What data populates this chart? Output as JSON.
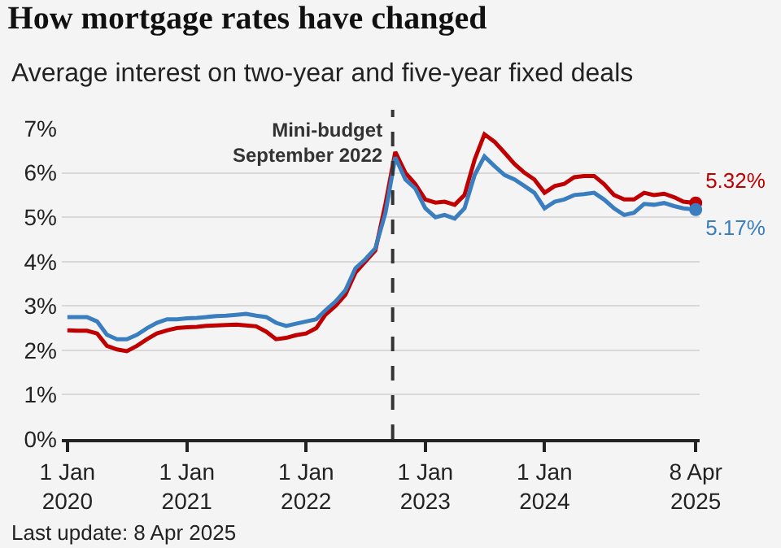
{
  "chart_data": {
    "type": "line",
    "title": "How mortgage rates have changed",
    "subtitle": "Average interest on two-year and five-year fixed deals",
    "x": [
      "2020-01-01",
      "2020-02-01",
      "2020-03-01",
      "2020-04-01",
      "2020-05-01",
      "2020-06-01",
      "2020-07-01",
      "2020-08-01",
      "2020-09-01",
      "2020-10-01",
      "2020-11-01",
      "2020-12-01",
      "2021-01-01",
      "2021-02-01",
      "2021-03-01",
      "2021-04-01",
      "2021-05-01",
      "2021-06-01",
      "2021-07-01",
      "2021-08-01",
      "2021-09-01",
      "2021-10-01",
      "2021-11-01",
      "2021-12-01",
      "2022-01-01",
      "2022-02-01",
      "2022-03-01",
      "2022-04-01",
      "2022-05-01",
      "2022-06-01",
      "2022-07-01",
      "2022-08-01",
      "2022-09-01",
      "2022-10-01",
      "2022-11-01",
      "2022-12-01",
      "2023-01-01",
      "2023-02-01",
      "2023-03-01",
      "2023-04-01",
      "2023-05-01",
      "2023-06-01",
      "2023-07-01",
      "2023-08-01",
      "2023-09-01",
      "2023-10-01",
      "2023-11-01",
      "2023-12-01",
      "2024-01-01",
      "2024-02-01",
      "2024-03-01",
      "2024-04-01",
      "2024-05-01",
      "2024-06-01",
      "2024-07-01",
      "2024-08-01",
      "2024-09-01",
      "2024-10-01",
      "2024-11-01",
      "2024-12-01",
      "2025-01-01",
      "2025-02-01",
      "2025-03-01",
      "2025-04-08"
    ],
    "series": [
      {
        "color": "#c00000",
        "values": [
          2.45,
          2.44,
          2.44,
          2.38,
          2.1,
          2.02,
          1.98,
          2.1,
          2.25,
          2.38,
          2.45,
          2.5,
          2.52,
          2.53,
          2.55,
          2.56,
          2.57,
          2.58,
          2.56,
          2.54,
          2.42,
          2.25,
          2.28,
          2.34,
          2.38,
          2.5,
          2.8,
          3.0,
          3.25,
          3.75,
          4.0,
          4.25,
          5.3,
          6.47,
          6.0,
          5.75,
          5.4,
          5.33,
          5.35,
          5.28,
          5.5,
          6.3,
          6.87,
          6.7,
          6.45,
          6.2,
          6.0,
          5.85,
          5.55,
          5.7,
          5.75,
          5.9,
          5.93,
          5.93,
          5.75,
          5.5,
          5.4,
          5.4,
          5.55,
          5.5,
          5.53,
          5.45,
          5.35,
          5.32
        ],
        "value_labels": [
          null,
          null,
          null,
          null,
          null,
          null,
          null,
          null,
          null,
          null,
          null,
          null,
          null,
          null,
          null,
          null,
          null,
          null,
          null,
          null,
          null,
          null,
          null,
          null,
          null,
          null,
          null,
          null,
          null,
          null,
          null,
          null,
          null,
          null,
          null,
          null,
          null,
          null,
          null,
          null,
          null,
          null,
          null,
          null,
          null,
          null,
          null,
          null,
          null,
          null,
          null,
          null,
          null,
          null,
          null,
          null,
          null,
          null,
          null,
          null,
          null,
          null,
          null,
          "5.32%"
        ]
      },
      {
        "color": "#3a7ebf",
        "values": [
          2.75,
          2.75,
          2.75,
          2.65,
          2.35,
          2.25,
          2.25,
          2.35,
          2.5,
          2.62,
          2.7,
          2.7,
          2.72,
          2.73,
          2.75,
          2.77,
          2.78,
          2.8,
          2.82,
          2.78,
          2.75,
          2.62,
          2.55,
          2.6,
          2.65,
          2.7,
          2.9,
          3.1,
          3.35,
          3.85,
          4.05,
          4.3,
          5.1,
          6.35,
          5.85,
          5.65,
          5.2,
          5.0,
          5.05,
          4.97,
          5.2,
          5.95,
          6.37,
          6.15,
          5.95,
          5.85,
          5.7,
          5.55,
          5.2,
          5.35,
          5.4,
          5.5,
          5.52,
          5.55,
          5.4,
          5.2,
          5.05,
          5.1,
          5.3,
          5.28,
          5.32,
          5.25,
          5.2,
          5.17
        ],
        "value_labels": [
          null,
          null,
          null,
          null,
          null,
          null,
          null,
          null,
          null,
          null,
          null,
          null,
          null,
          null,
          null,
          null,
          null,
          null,
          null,
          null,
          null,
          null,
          null,
          null,
          null,
          null,
          null,
          null,
          null,
          null,
          null,
          null,
          null,
          null,
          null,
          null,
          null,
          null,
          null,
          null,
          null,
          null,
          null,
          null,
          null,
          null,
          null,
          null,
          null,
          null,
          null,
          null,
          null,
          null,
          null,
          null,
          null,
          null,
          null,
          null,
          null,
          null,
          null,
          "5.17%"
        ]
      }
    ],
    "xlim": [
      "2019-12-15",
      "2025-04-20"
    ],
    "xticks": [
      {
        "value": "2020-01-01",
        "label": "1 Jan\n2020"
      },
      {
        "value": "2021-01-01",
        "label": "1 Jan\n2021"
      },
      {
        "value": "2022-01-01",
        "label": "1 Jan\n2022"
      },
      {
        "value": "2023-01-01",
        "label": "1 Jan\n2023"
      },
      {
        "value": "2024-01-01",
        "label": "1 Jan\n2024"
      },
      {
        "value": "2025-04-08",
        "label": "8 Apr\n2025"
      }
    ],
    "ylim": [
      0,
      7
    ],
    "yticks": [
      {
        "value": 0,
        "label": "0%"
      },
      {
        "value": 1,
        "label": "1%"
      },
      {
        "value": 2,
        "label": "2%"
      },
      {
        "value": 3,
        "label": "3%"
      },
      {
        "value": 4,
        "label": "4%"
      },
      {
        "value": 5,
        "label": "5%"
      },
      {
        "value": 6,
        "label": "6%"
      },
      {
        "value": 7,
        "label": "7%"
      }
    ],
    "grid": "y",
    "line_style": "solid",
    "ref_lines": [
      {
        "axis": "x",
        "value": "2022-09-23",
        "label": "Mini-budget\nSeptember 2022",
        "color": "#333333",
        "line_style": "dashed"
      }
    ],
    "annotations": [
      "Last update: 8 Apr 2025"
    ]
  }
}
